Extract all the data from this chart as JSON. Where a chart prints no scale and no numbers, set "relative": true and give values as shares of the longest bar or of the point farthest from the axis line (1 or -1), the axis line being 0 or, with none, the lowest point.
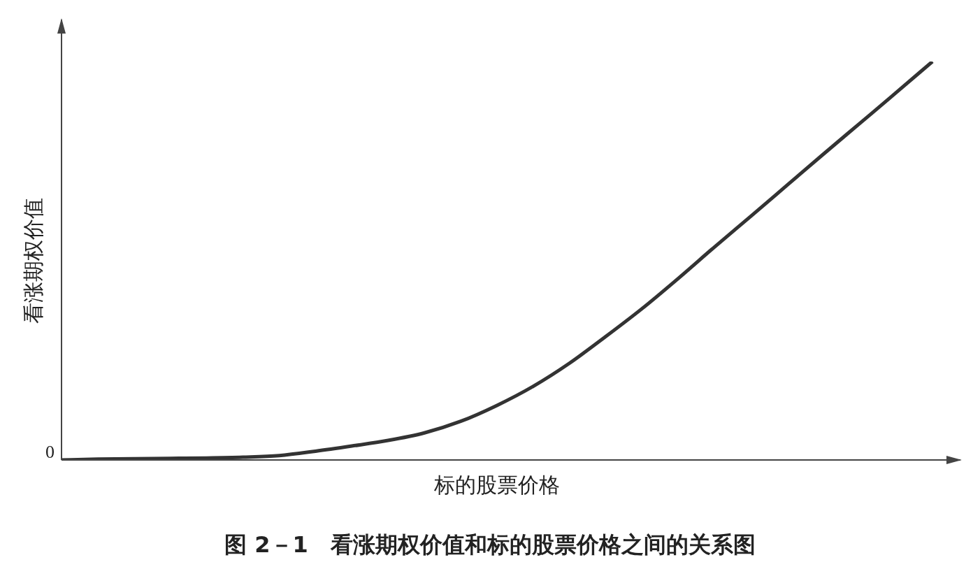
{
  "chart_data": {
    "type": "line",
    "title": "图 2－1　看涨期权价值和标的股票价格之间的关系图",
    "xlabel": "标的股票价格",
    "ylabel": "看涨期权价值",
    "relative": true,
    "grid": false,
    "legend": false,
    "marker": "none",
    "color": "#333333",
    "annotations": [
      "0"
    ],
    "categories": [
      null,
      null,
      null,
      null,
      null,
      null,
      null,
      null,
      null,
      null,
      null,
      null,
      null,
      null,
      null,
      null,
      null,
      null,
      null,
      null,
      null,
      null,
      null,
      null,
      null
    ],
    "values": [
      0,
      0.002,
      0.003,
      0.004,
      0.005,
      0.007,
      0.011,
      0.022,
      0.035,
      0.049,
      0.068,
      0.097,
      0.137,
      0.185,
      0.243,
      0.31,
      0.38,
      0.456,
      0.535,
      0.612,
      0.69,
      0.768,
      0.845,
      0.922,
      1
    ]
  }
}
